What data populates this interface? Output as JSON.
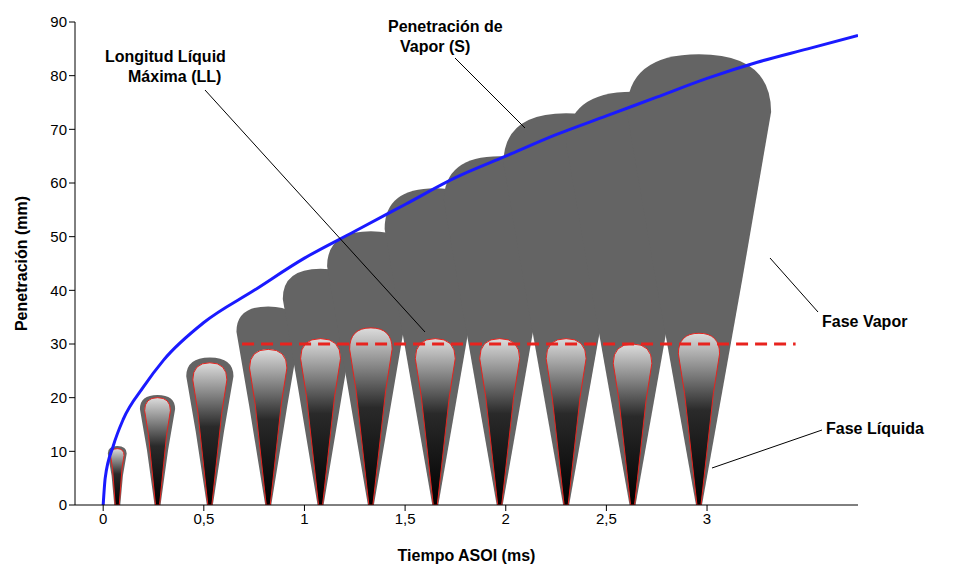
{
  "chart_data": {
    "type": "line",
    "x_label": "Tiempo ASOI (ms)",
    "y_label": "Penetración (mm)",
    "xlim": [
      -0.14,
      3.75
    ],
    "ylim": [
      0,
      90
    ],
    "xticks": [
      0,
      {
        "value": 0.5,
        "label": "0,5"
      },
      1,
      {
        "value": 1.5,
        "label": "1,5"
      },
      2,
      {
        "value": 2.5,
        "label": "2,5"
      },
      3
    ],
    "yticks": [
      0,
      10,
      20,
      30,
      40,
      50,
      60,
      70,
      80,
      90
    ],
    "grid": false,
    "series": [
      {
        "name": "Penetración de Vapor (S)",
        "type": "line",
        "color": "#1a1aff",
        "line_style": "solid",
        "x": [
          0,
          0.01,
          0.05,
          0.1,
          0.2,
          0.3,
          0.5,
          0.75,
          1,
          1.25,
          1.5,
          1.75,
          2,
          2.25,
          2.5,
          2.75,
          3,
          3.25,
          3.5,
          3.75
        ],
        "values": [
          0,
          5,
          11,
          16,
          22,
          27,
          34,
          40,
          46,
          51,
          56,
          61,
          65,
          69,
          72.5,
          76,
          79.5,
          82.5,
          85,
          87.5
        ]
      },
      {
        "name": "Longitud Líquid Máxima (LL)",
        "type": "line",
        "color": "#e8231e",
        "line_style": "dashed",
        "x": [
          0.69,
          3.44
        ],
        "values": [
          30,
          30
        ]
      },
      {
        "name": "Fase Vapor",
        "type": "bar",
        "color": "#646464",
        "x": [
          0.07,
          0.27,
          0.53,
          0.82,
          1.08,
          1.33,
          1.65,
          1.97,
          2.3,
          2.63,
          2.96
        ],
        "values": [
          11,
          20.5,
          27.5,
          37,
          44,
          51,
          59,
          65,
          73,
          77,
          84
        ]
      },
      {
        "name": "Fase Líquida",
        "type": "bar",
        "color": "#000000",
        "x": [
          0.07,
          0.27,
          0.53,
          0.82,
          1.08,
          1.33,
          1.65,
          1.97,
          2.3,
          2.63,
          2.96
        ],
        "values": [
          10.5,
          20,
          26.5,
          29,
          31,
          33,
          31,
          31,
          31,
          30,
          32
        ]
      }
    ]
  }
}
